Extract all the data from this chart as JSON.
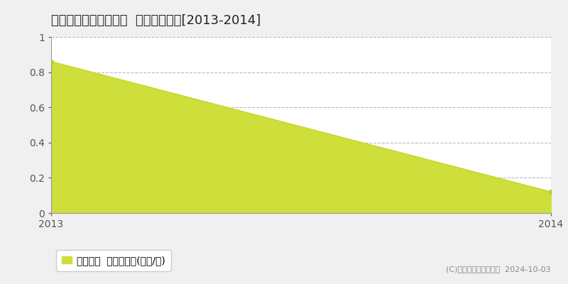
{
  "title": "東蒲原郡阿賀町日出谷  土地価格推移[2013-2014]",
  "x_values": [
    2013,
    2014
  ],
  "y_values": [
    0.86,
    0.12
  ],
  "line_color": "#c8d832",
  "fill_color": "#cede3a",
  "fill_alpha": 1.0,
  "marker_color": "#b8c828",
  "xlim": [
    2013,
    2014
  ],
  "ylim": [
    0,
    1
  ],
  "yticks": [
    0,
    0.2,
    0.4,
    0.6,
    0.8,
    1.0
  ],
  "ytick_labels": [
    "0",
    "0.2",
    "0.4",
    "0.6",
    "0.8",
    "1"
  ],
  "xticks": [
    2013,
    2014
  ],
  "xtick_labels": [
    "2013",
    "2014"
  ],
  "legend_label": "土地価格  平均坪単価(万円/坪)",
  "copyright_text": "(C)土地価格ドットコム  2024-10-03",
  "background_color": "#f0f0f0",
  "plot_bg_color": "#ffffff",
  "grid_color": "#bbbbbb",
  "title_fontsize": 13,
  "tick_fontsize": 10,
  "legend_fontsize": 10,
  "copyright_fontsize": 8
}
